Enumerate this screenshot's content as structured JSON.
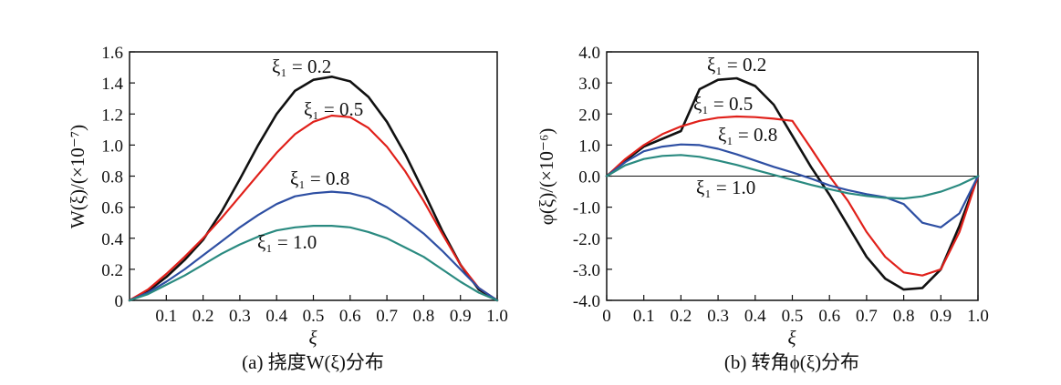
{
  "chart_data": [
    {
      "type": "line",
      "caption": "(a) 挠度W(ξ)分布",
      "xlabel": "ξ",
      "ylabel": "W(ξ)/(×10⁻⁷)",
      "xlim": [
        0,
        1.0
      ],
      "ylim": [
        0,
        1.6
      ],
      "xticks": [
        "0.1",
        "0.2",
        "0.3",
        "0.4",
        "0.5",
        "0.6",
        "0.7",
        "0.8",
        "0.9",
        "1.0"
      ],
      "xtick_values": [
        0.1,
        0.2,
        0.3,
        0.4,
        0.5,
        0.6,
        0.7,
        0.8,
        0.9,
        1.0
      ],
      "yticks": [
        "0",
        "0.2",
        "0.4",
        "0.6",
        "0.8",
        "1.0",
        "1.2",
        "1.4",
        "1.6"
      ],
      "ytick_values": [
        0,
        0.2,
        0.4,
        0.6,
        0.8,
        1.0,
        1.2,
        1.4,
        1.6
      ],
      "grid": false,
      "x": [
        0,
        0.05,
        0.1,
        0.15,
        0.2,
        0.25,
        0.3,
        0.35,
        0.4,
        0.45,
        0.5,
        0.55,
        0.6,
        0.65,
        0.7,
        0.75,
        0.8,
        0.85,
        0.9,
        0.95,
        1.0
      ],
      "series": [
        {
          "name": "ξ1 = 0.2",
          "label": "ξ₁ = 0.2",
          "color": "#111111",
          "values": [
            0,
            0.06,
            0.15,
            0.26,
            0.39,
            0.57,
            0.78,
            1.0,
            1.2,
            1.35,
            1.42,
            1.44,
            1.41,
            1.31,
            1.15,
            0.94,
            0.7,
            0.45,
            0.23,
            0.07,
            0
          ]
        },
        {
          "name": "ξ1 = 0.5",
          "label": "ξ₁ = 0.5",
          "color": "#e0201a",
          "values": [
            0,
            0.07,
            0.17,
            0.28,
            0.4,
            0.53,
            0.67,
            0.81,
            0.95,
            1.07,
            1.15,
            1.19,
            1.18,
            1.11,
            0.99,
            0.83,
            0.64,
            0.43,
            0.23,
            0.08,
            0
          ]
        },
        {
          "name": "ξ1 = 0.8",
          "label": "ξ₁ = 0.8",
          "color": "#2e4fa3",
          "values": [
            0,
            0.05,
            0.12,
            0.2,
            0.29,
            0.38,
            0.47,
            0.55,
            0.62,
            0.67,
            0.69,
            0.7,
            0.69,
            0.66,
            0.6,
            0.52,
            0.43,
            0.32,
            0.2,
            0.08,
            0
          ]
        },
        {
          "name": "ξ1 = 1.0",
          "label": "ξ₁ = 1.0",
          "color": "#2a8a80",
          "values": [
            0,
            0.04,
            0.1,
            0.16,
            0.23,
            0.3,
            0.36,
            0.41,
            0.45,
            0.47,
            0.48,
            0.48,
            0.47,
            0.44,
            0.4,
            0.34,
            0.28,
            0.2,
            0.12,
            0.05,
            0
          ]
        }
      ]
    },
    {
      "type": "line",
      "caption": "(b) 转角ϕ(ξ)分布",
      "xlabel": "ξ",
      "ylabel": "φ(ξ)/(×10⁻⁶)",
      "xlim": [
        0,
        1.0
      ],
      "ylim": [
        -4.0,
        4.0
      ],
      "xticks": [
        "0",
        "0.1",
        "0.2",
        "0.3",
        "0.4",
        "0.5",
        "0.6",
        "0.7",
        "0.8",
        "0.9",
        "1.0"
      ],
      "xtick_values": [
        0,
        0.1,
        0.2,
        0.3,
        0.4,
        0.5,
        0.6,
        0.7,
        0.8,
        0.9,
        1.0
      ],
      "yticks": [
        "4.0",
        "3.0",
        "2.0",
        "1.0",
        "0.0",
        "-1.0",
        "-2.0",
        "-3.0",
        "-4.0"
      ],
      "ytick_values": [
        4,
        3,
        2,
        1,
        0,
        -1,
        -2,
        -3,
        -4
      ],
      "grid": false,
      "x": [
        0,
        0.05,
        0.1,
        0.15,
        0.2,
        0.25,
        0.3,
        0.35,
        0.4,
        0.45,
        0.5,
        0.55,
        0.6,
        0.65,
        0.7,
        0.75,
        0.8,
        0.85,
        0.9,
        0.95,
        1.0
      ],
      "series": [
        {
          "name": "ξ1 = 0.2",
          "label": "ξ₁ = 0.2",
          "color": "#111111",
          "values": [
            0,
            0.5,
            0.95,
            1.2,
            1.45,
            2.8,
            3.1,
            3.15,
            2.9,
            2.3,
            1.3,
            0.3,
            -0.6,
            -1.6,
            -2.6,
            -3.3,
            -3.65,
            -3.6,
            -3.0,
            -1.6,
            0
          ]
        },
        {
          "name": "ξ1 = 0.5",
          "label": "ξ₁ = 0.5",
          "color": "#e0201a",
          "values": [
            0,
            0.55,
            1.0,
            1.35,
            1.6,
            1.78,
            1.88,
            1.92,
            1.9,
            1.85,
            1.78,
            0.9,
            0.0,
            -0.8,
            -1.8,
            -2.6,
            -3.1,
            -3.2,
            -3.0,
            -1.8,
            0
          ]
        },
        {
          "name": "ξ1 = 0.8",
          "label": "ξ₁ = 0.8",
          "color": "#2e4fa3",
          "values": [
            0,
            0.45,
            0.8,
            0.95,
            1.02,
            1.0,
            0.88,
            0.7,
            0.5,
            0.3,
            0.12,
            -0.08,
            -0.3,
            -0.45,
            -0.58,
            -0.68,
            -0.9,
            -1.5,
            -1.65,
            -1.2,
            0
          ]
        },
        {
          "name": "ξ1 = 1.0",
          "label": "ξ₁ = 1.0",
          "color": "#2a8a80",
          "values": [
            0,
            0.35,
            0.55,
            0.65,
            0.68,
            0.62,
            0.5,
            0.36,
            0.2,
            0.04,
            -0.12,
            -0.28,
            -0.42,
            -0.55,
            -0.64,
            -0.7,
            -0.72,
            -0.65,
            -0.5,
            -0.28,
            0
          ]
        }
      ]
    }
  ]
}
